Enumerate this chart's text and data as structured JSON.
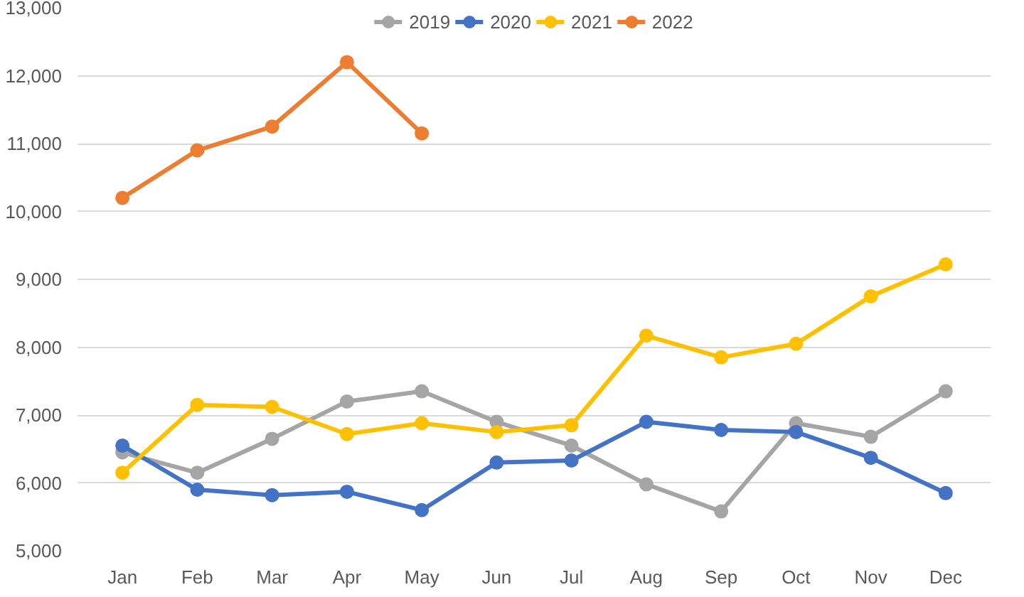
{
  "chart_data": {
    "type": "line",
    "categories": [
      "Jan",
      "Feb",
      "Mar",
      "Apr",
      "May",
      "Jun",
      "Jul",
      "Aug",
      "Sep",
      "Oct",
      "Nov",
      "Dec"
    ],
    "series": [
      {
        "name": "2019",
        "color": "#a5a5a5",
        "values": [
          6450,
          6150,
          6650,
          7200,
          7350,
          6900,
          6550,
          5980,
          5580,
          6880,
          6680,
          7350
        ]
      },
      {
        "name": "2020",
        "color": "#4472c4",
        "values": [
          6550,
          5900,
          5820,
          5870,
          5600,
          6300,
          6330,
          6900,
          6780,
          6750,
          6370,
          5850
        ]
      },
      {
        "name": "2021",
        "color": "#ffc000",
        "values": [
          6150,
          7150,
          7120,
          6720,
          6880,
          6750,
          6850,
          8170,
          7850,
          8050,
          8750,
          9220
        ]
      },
      {
        "name": "2022",
        "color": "#ed7d31",
        "values": [
          10200,
          10900,
          11250,
          12200,
          11150,
          null,
          null,
          null,
          null,
          null,
          null,
          null
        ]
      }
    ],
    "ylim": [
      5000,
      13000
    ],
    "yticks": [
      {
        "value": 5000,
        "label": "5,000"
      },
      {
        "value": 6000,
        "label": "6,000"
      },
      {
        "value": 7000,
        "label": "7,000"
      },
      {
        "value": 8000,
        "label": "8,000"
      },
      {
        "value": 9000,
        "label": "9,000"
      },
      {
        "value": 10000,
        "label": "10,000"
      },
      {
        "value": 11000,
        "label": "11,000"
      },
      {
        "value": 12000,
        "label": "12,000"
      },
      {
        "value": 13000,
        "label": "13,000"
      }
    ],
    "grid": "y",
    "legend": "top",
    "marker": "circle",
    "line_style": "solid"
  }
}
